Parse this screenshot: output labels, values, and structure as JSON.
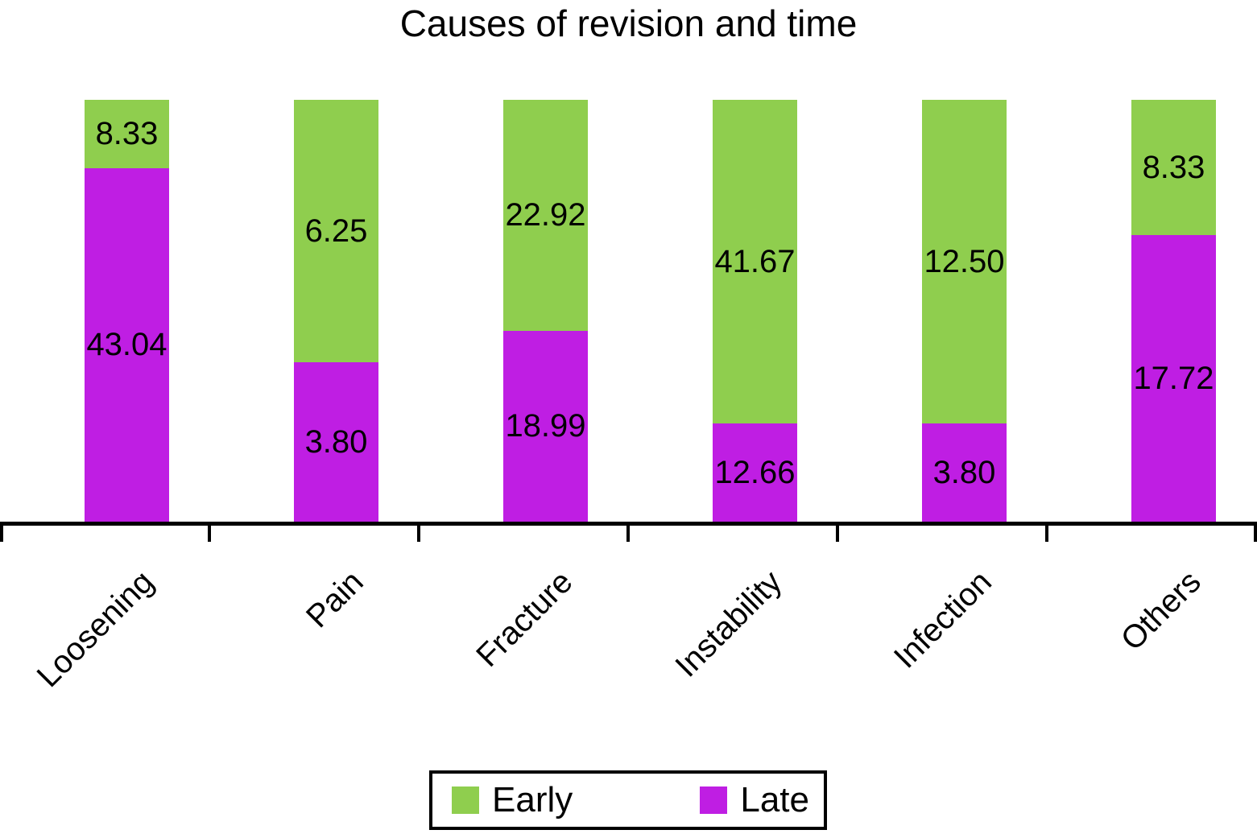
{
  "title": "Causes of revision and time",
  "colors": {
    "early": "#8FCE4E",
    "late": "#BF1EE3",
    "axis": "#000000",
    "text": "#000000",
    "background": "#ffffff"
  },
  "chart_data": {
    "type": "bar",
    "subtype": "stacked-percentage-per-bar",
    "title": "Causes of revision and time",
    "categories": [
      "Loosening",
      "Pain",
      "Fracture",
      "Instability",
      "Infection",
      "Others"
    ],
    "series": [
      {
        "name": "Early",
        "color": "#8FCE4E",
        "values": [
          8.33,
          6.25,
          22.92,
          41.67,
          12.5,
          8.33
        ]
      },
      {
        "name": "Late",
        "color": "#BF1EE3",
        "values": [
          43.04,
          3.8,
          18.99,
          12.66,
          3.8,
          17.72
        ]
      }
    ],
    "value_labels": {
      "early": [
        "8.33",
        "6.25",
        "22.92",
        "41.67",
        "12.50",
        "8.33"
      ],
      "late": [
        "43.04",
        "3.80",
        "18.99",
        "12.66",
        "3.80",
        "17.72"
      ]
    },
    "legend": {
      "items": [
        {
          "label": "Early"
        },
        {
          "label": "Late"
        }
      ],
      "position": "bottom-center",
      "border": true
    },
    "grid": false,
    "y_axis_visible": false,
    "x_tick_label_rotation_deg": 45,
    "normalization": "each bar stretched to full plot height; segment share = value / (early + late)"
  }
}
